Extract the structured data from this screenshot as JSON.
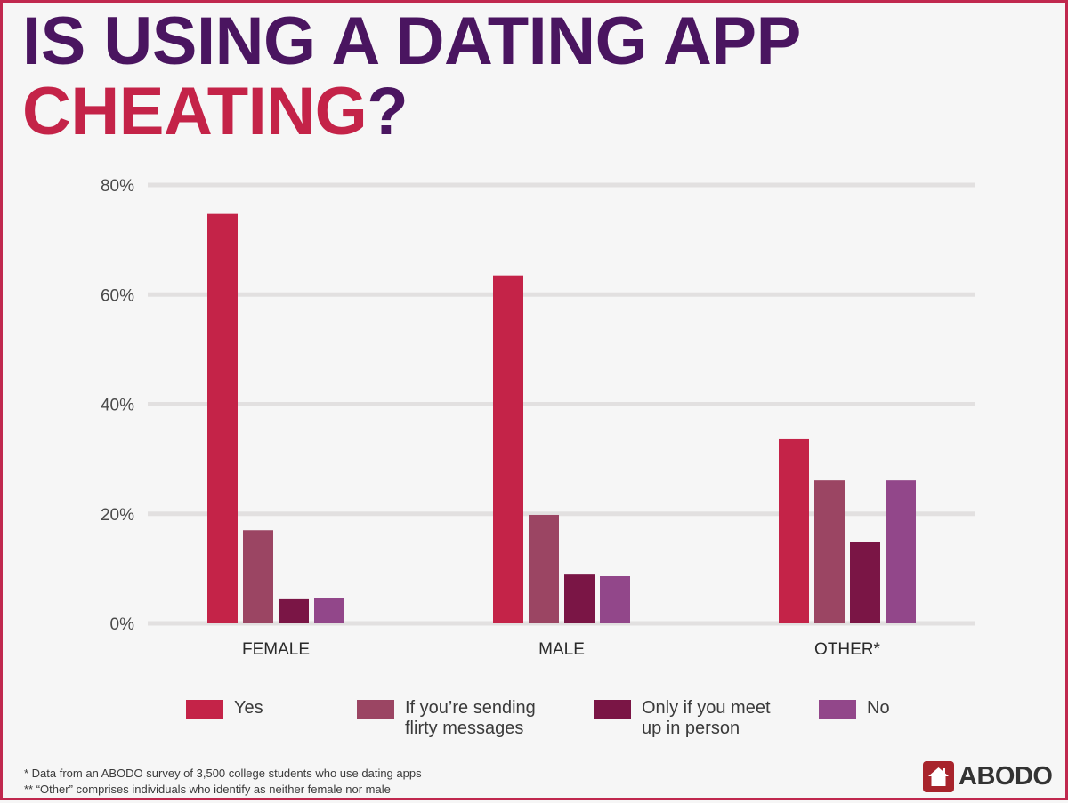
{
  "title": {
    "line1": "IS USING A DATING APP",
    "line2_highlight": "CHEATING",
    "line2_suffix": "?"
  },
  "colors": {
    "title_primary": "#4a1560",
    "title_highlight": "#c42348",
    "border": "#c0284e",
    "background": "#f6f6f6",
    "gridline": "#e2e0e0"
  },
  "chart_data": {
    "type": "bar",
    "title": "IS USING A DATING APP CHEATING?",
    "xlabel": "",
    "ylabel": "",
    "categories": [
      "FEMALE",
      "MALE",
      "OTHER*"
    ],
    "series": [
      {
        "name": "Yes",
        "color": "#c42348",
        "values": [
          74.7,
          63.5,
          33.6
        ]
      },
      {
        "name": "If you’re sending\nflirty messages",
        "color": "#9b4563",
        "values": [
          17.0,
          19.8,
          26.1
        ]
      },
      {
        "name": "Only if you meet\nup in person",
        "color": "#7a1545",
        "values": [
          4.4,
          8.9,
          14.8
        ]
      },
      {
        "name": "No",
        "color": "#92478a",
        "values": [
          4.7,
          8.6,
          26.1
        ]
      }
    ],
    "ylim": [
      0,
      80
    ],
    "yticks": [
      0,
      20,
      40,
      60,
      80
    ],
    "ytick_labels": [
      "0%",
      "20%",
      "40%",
      "60%",
      "80%"
    ],
    "grid": true,
    "legend_position": "bottom"
  },
  "footnotes": [
    "* Data from an ABODO survey of 3,500 college students who use dating apps",
    "** “Other” comprises individuals who identify as neither female nor male"
  ],
  "logo": {
    "text": "ABODO",
    "icon": "house-icon",
    "color": "#a8242c"
  }
}
